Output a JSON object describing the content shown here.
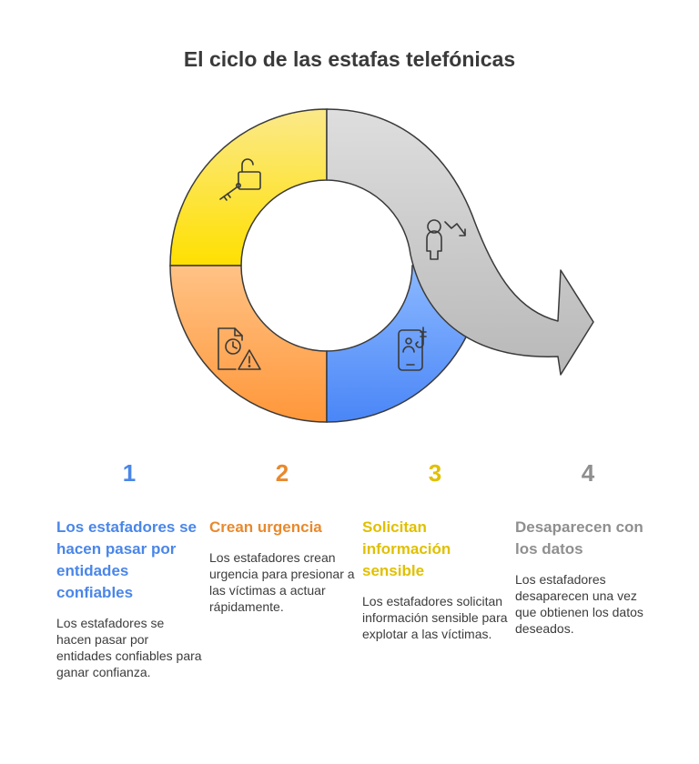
{
  "title": "El ciclo de las estafas telefónicas",
  "colors": {
    "blue": "#4a86e8",
    "orange": "#e8892e",
    "yellow": "#e0c000",
    "gray": "#8f8f8f"
  },
  "segments": [
    {
      "name": "yellow-segment",
      "icon": "lock-key-icon"
    },
    {
      "name": "orange-segment",
      "icon": "document-clock-warning-icon"
    },
    {
      "name": "blue-segment",
      "icon": "phone-hook-icon"
    },
    {
      "name": "gray-arrow-segment",
      "icon": "person-down-arrow-icon"
    }
  ],
  "steps": [
    {
      "number": "1",
      "heading": "Los estafadores se hacen pasar por entidades confiables",
      "description": "Los estafadores se hacen pasar por entidades confiables para ganar confianza."
    },
    {
      "number": "2",
      "heading": "Crean urgencia",
      "description": "Los estafadores crean urgencia para presionar a las víctimas a actuar rápidamente."
    },
    {
      "number": "3",
      "heading": "Solicitan información sensible",
      "description": "Los estafadores solicitan información sensible para explotar a las víctimas."
    },
    {
      "number": "4",
      "heading": "Desaparecen con los datos",
      "description": "Los estafadores desaparecen una vez que obtienen los datos deseados."
    }
  ]
}
